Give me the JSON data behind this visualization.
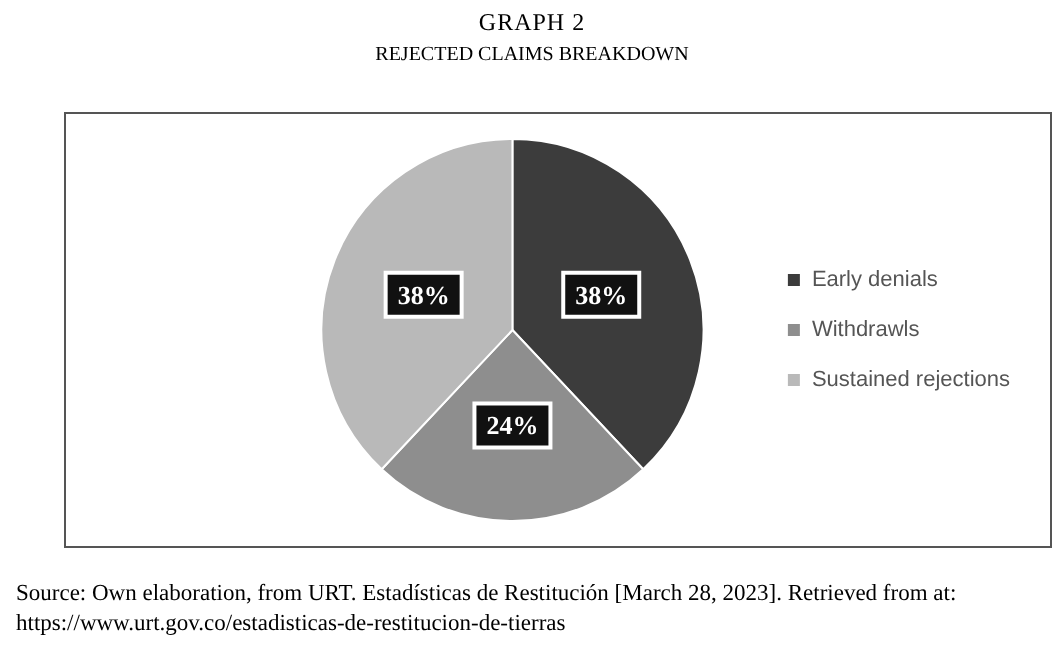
{
  "chart_data": {
    "type": "pie",
    "title": "GRAPH 2",
    "subtitle": "REJECTED CLAIMS BREAKDOWN",
    "categories": [
      "Early denials",
      "Withdrawls",
      "Sustained rejections"
    ],
    "values": [
      38,
      24,
      38
    ],
    "colors": [
      "#3c3c3c",
      "#8e8e8e",
      "#b9b9b9"
    ],
    "value_labels": [
      "38%",
      "24%",
      "38%"
    ],
    "legend": "right",
    "annotations": [
      "Source: Own elaboration,  from URT. Estadísticas de Restitución [March 28, 2023]. Retrieved from at: https://www.urt.gov.co/estadisticas-de-restitucion-de-tierras"
    ]
  }
}
